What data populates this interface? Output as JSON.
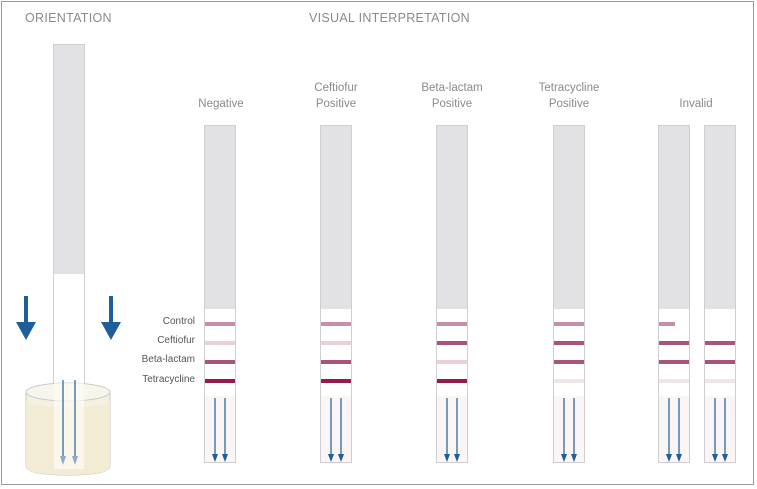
{
  "headings": {
    "orientation": "ORIENTATION",
    "visual": "VISUAL INTERPRETATION"
  },
  "row_labels": {
    "control": "Control",
    "ceftiofur": "Ceftiofur",
    "beta_lactam": "Beta-lactam",
    "tetracycline": "Tetracycline"
  },
  "columns": [
    {
      "line1": "",
      "line2": "Negative"
    },
    {
      "line1": "Ceftiofur",
      "line2": "Positive"
    },
    {
      "line1": "Beta-lactam",
      "line2": "Positive"
    },
    {
      "line1": "Tetracycline",
      "line2": "Positive"
    },
    {
      "line1": "",
      "line2": "Invalid"
    }
  ],
  "colors": {
    "strip_gray": "#e2e2e4",
    "arrow_blue": "#1f5f99",
    "line_faint": "#ecd0d9",
    "line_medium": "#c790a8",
    "line_dark": "#a9557b",
    "line_darkest": "#951a4f"
  },
  "icons": {
    "orientation_arrow": "down-arrow-icon",
    "flow_arrow": "down-arrow-icon",
    "cup": "sample-cup-icon"
  }
}
